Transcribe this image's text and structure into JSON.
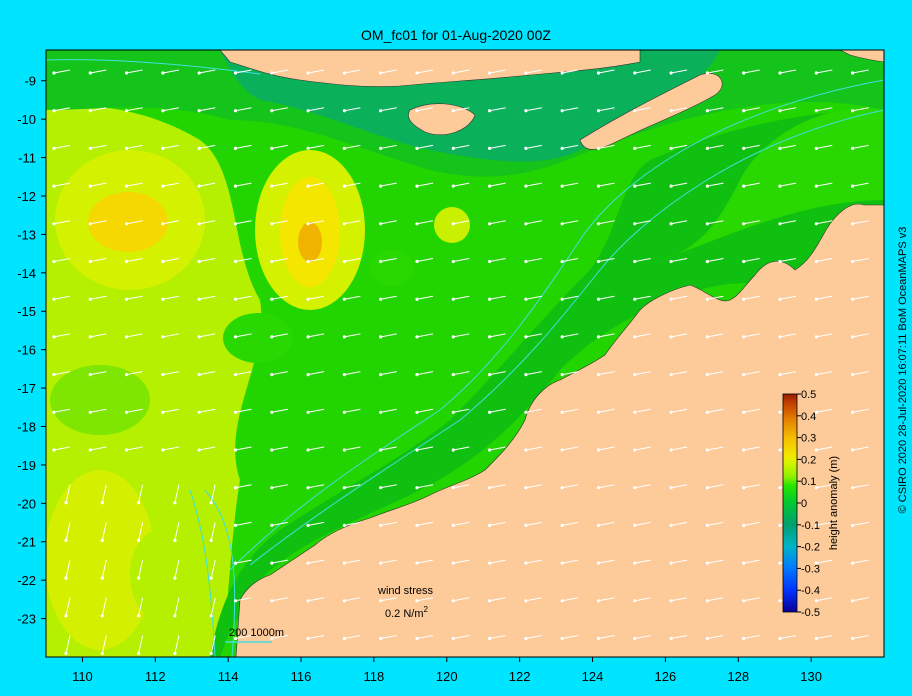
{
  "title": "OM_fc01 for 01-Aug-2020 00Z",
  "map": {
    "lon_range": [
      109,
      132
    ],
    "lat_range": [
      -24,
      -8.2
    ],
    "lon_ticks": [
      110,
      112,
      114,
      116,
      118,
      120,
      122,
      124,
      126,
      128,
      130
    ],
    "lat_ticks": [
      -9,
      -10,
      -11,
      -12,
      -13,
      -14,
      -15,
      -16,
      -17,
      -18,
      -19,
      -20,
      -21,
      -22,
      -23
    ],
    "lon_tick_labels": [
      "110",
      "112",
      "114",
      "116",
      "118",
      "120",
      "122",
      "124",
      "126",
      "128",
      "130"
    ],
    "lat_tick_labels": [
      "-9",
      "-10",
      "-11",
      "-12",
      "-13",
      "-14",
      "-15",
      "-16",
      "-17",
      "-18",
      "-19",
      "-20",
      "-21",
      "-22",
      "-23"
    ]
  },
  "colorbar": {
    "label": "height anomaly (m)",
    "range": [
      -0.5,
      0.5
    ],
    "tick_labels": [
      "0.5",
      "0.4",
      "0.3",
      "0.2",
      "0.1",
      "0",
      "-0.1",
      "-0.2",
      "-0.3",
      "-0.4",
      "-0.5"
    ],
    "stops": [
      "#0a0096",
      "#0033ff",
      "#0078ff",
      "#00b4c8",
      "#00a070",
      "#00c832",
      "#28e600",
      "#8cf000",
      "#d2f500",
      "#f5e600",
      "#f5be00",
      "#e68200",
      "#c84600",
      "#961e00"
    ]
  },
  "legend": {
    "wind_label": "wind stress",
    "wind_value": "0.2 N/m",
    "wind_exp": "2",
    "isobath_label": "200  1000m"
  },
  "credit": "© CSIRO 2020   28-Jul-2020 16:07:11 BoM OceanMAPS v3",
  "colors": {
    "background": "#00e5ff",
    "land": "#fdca9a",
    "coast_shelf": "#aaaaaa",
    "isobath": "#40e0e0",
    "arrows": "#ffffff"
  }
}
